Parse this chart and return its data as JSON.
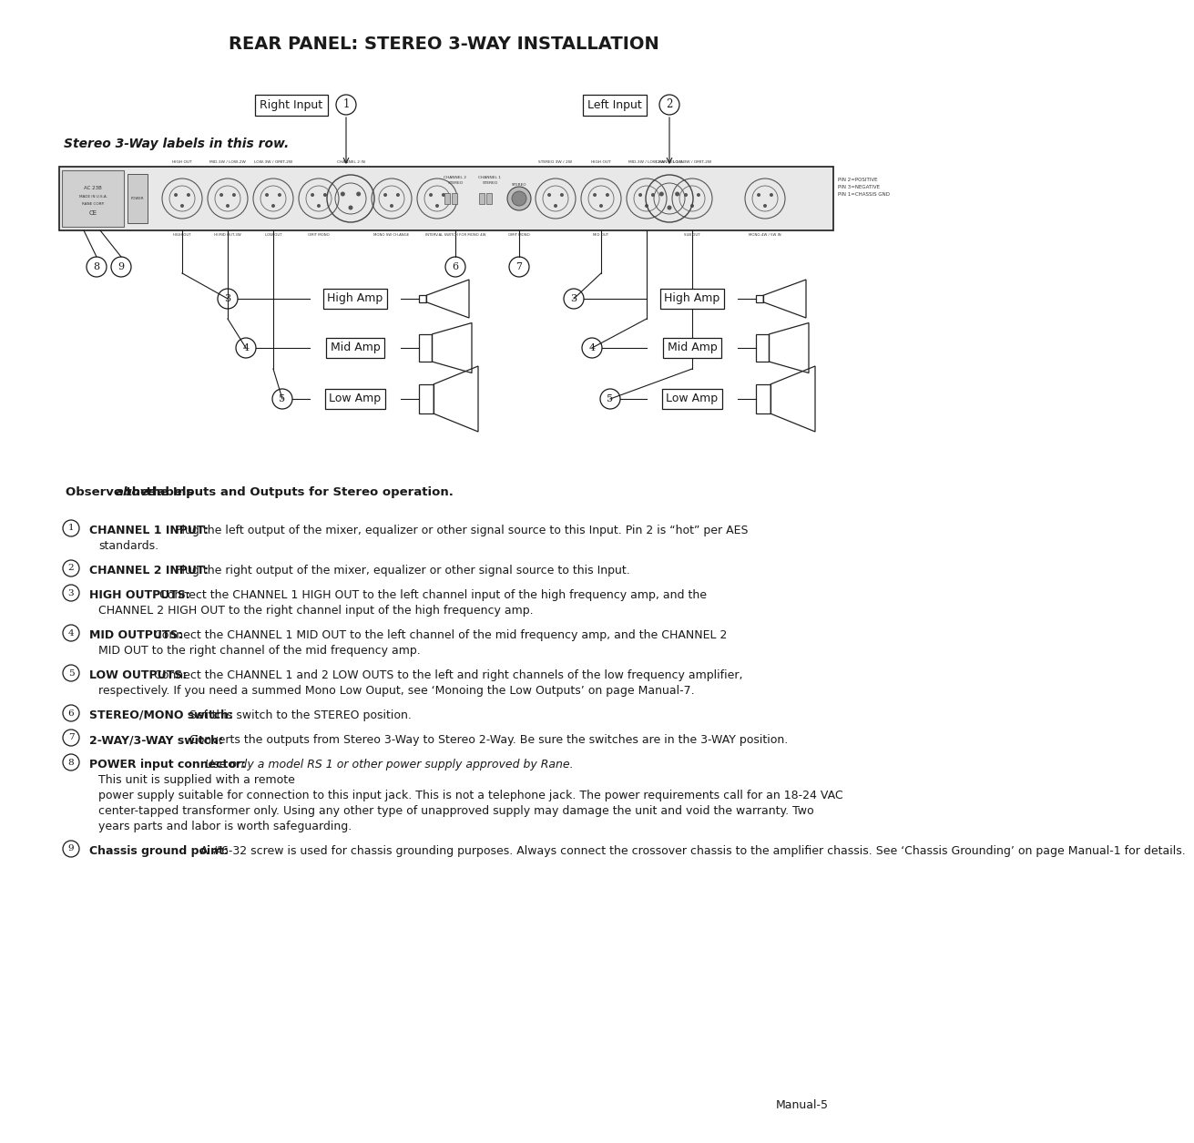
{
  "title": "REAR PANEL: STEREO 3-WAY INSTALLATION",
  "bg_color": "#ffffff",
  "text_color": "#1a1a1a",
  "stereo_label": "Stereo 3-Way labels in this row.",
  "right_input_label": "Right Input",
  "left_input_label": "Left Input",
  "page_num": "Manual-5",
  "items": [
    {
      "num": "1",
      "bold": "CHANNEL 1 INPUT:",
      "text": " Plug the left output of the mixer, equalizer or other signal source to this Input. Pin 2 is “hot” per AES\nstandards."
    },
    {
      "num": "2",
      "bold": "CHANNEL 2 INPUT:",
      "text": " Plug the right output of the mixer, equalizer or other signal source to this Input."
    },
    {
      "num": "3",
      "bold": "HIGH OUTPUTS:",
      "text": " Connect the CHANNEL 1 HIGH OUT to the left channel input of the high frequency amp, and the\nCHANNEL 2 HIGH OUT to the right channel input of the high frequency amp."
    },
    {
      "num": "4",
      "bold": "MID OUTPUTS:",
      "text": " Connect the CHANNEL 1 MID OUT to the left channel of the mid frequency amp, and the CHANNEL 2\nMID OUT to the right channel of the mid frequency amp."
    },
    {
      "num": "5",
      "bold": "LOW OUTPUTS:",
      "text": " Connect the CHANNEL 1 and 2 LOW OUTS to the left and right channels of the low frequency amplifier,\nrespectively. If you need a summed Mono Low Ouput, see ‘Monoing the Low Outputs’ on page Manual-7."
    },
    {
      "num": "6",
      "bold": "STEREO/MONO switch:",
      "text": " Set this switch to the STEREO position."
    },
    {
      "num": "7",
      "bold": "2-WAY/3-WAY switch:",
      "text": " Converts the outputs from Stereo 3-Way to Stereo 2-Way. Be sure the switches are in the 3-WAY position."
    },
    {
      "num": "8",
      "bold": "POWER input connector:",
      "italic_text": " Use only a model RS 1 or other power supply approved by Rane.",
      "text2": " This unit is supplied with a remote\npower supply suitable for connection to this input jack. This is not a telephone jack. The power requirements call for an 18-24 VAC\ncenter-tapped transformer only. Using any other type of unapproved supply may damage the unit and void the warranty. Two\nyears parts and labor is worth safeguarding."
    },
    {
      "num": "9",
      "bold": "Chassis ground point:",
      "text": " A #6-32 screw is used for chassis grounding purposes. Always connect the crossover chassis to the ampliﬁer chassis. See ‘Chassis Grounding’ on page Manual-1 for details."
    }
  ]
}
